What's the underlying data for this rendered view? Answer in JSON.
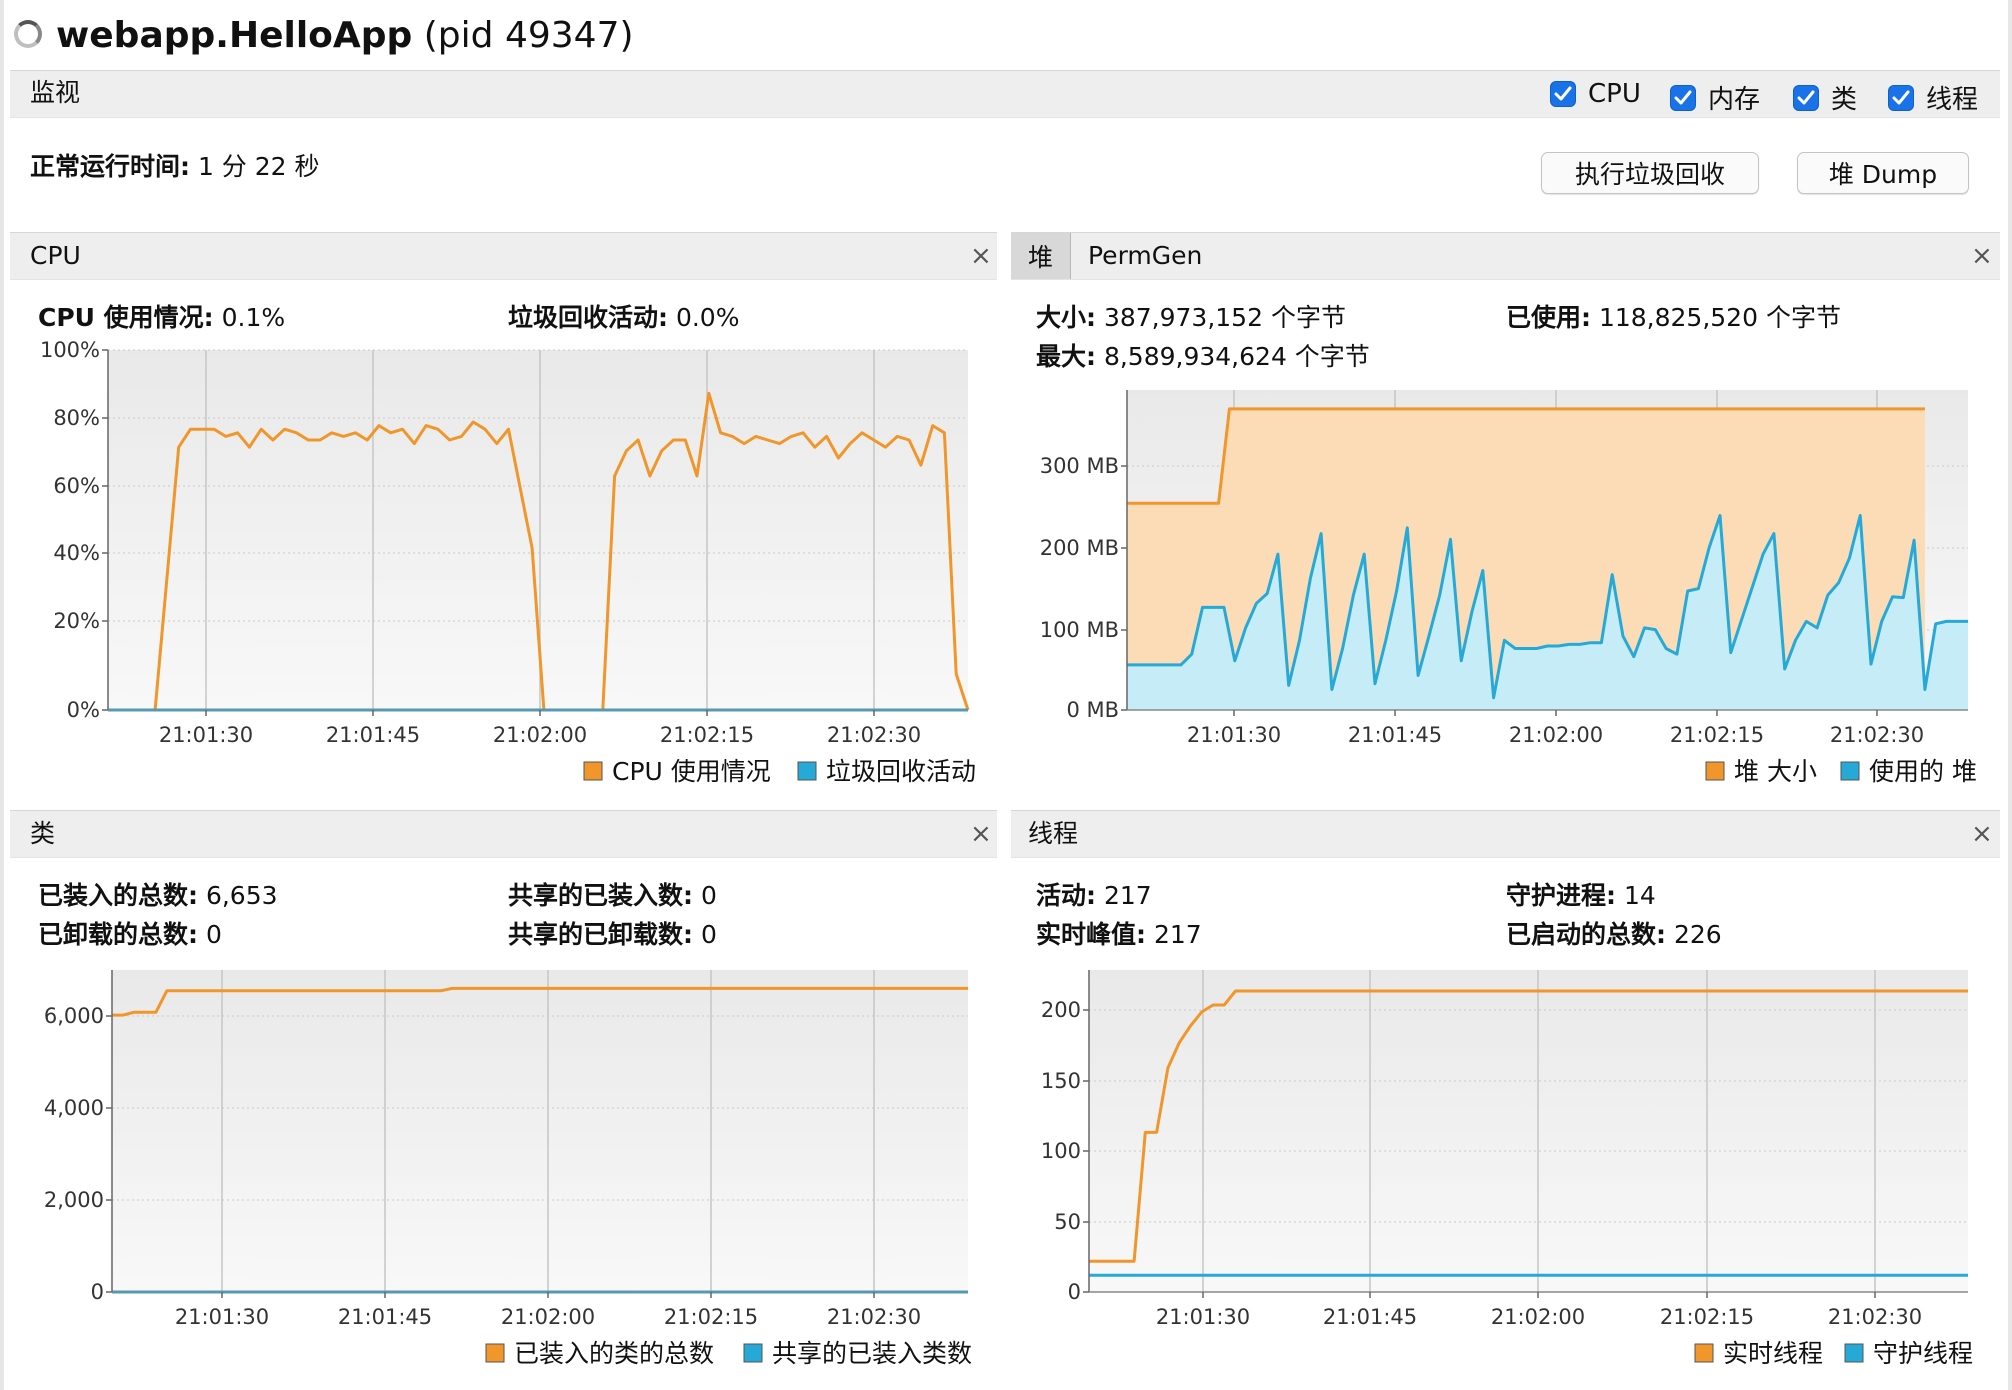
{
  "window": {
    "app_name": "webapp.HelloApp",
    "pid_text": "(pid 49347)"
  },
  "monitor": {
    "title": "监视",
    "checkboxes": [
      {
        "label": "CPU",
        "checked": true
      },
      {
        "label": "内存",
        "checked": true
      },
      {
        "label": "类",
        "checked": true
      },
      {
        "label": "线程",
        "checked": true
      }
    ],
    "uptime_label": "正常运行时间:",
    "uptime_value": "1 分 22 秒",
    "gc_button": "执行垃圾回收",
    "dump_button": "堆 Dump"
  },
  "colors": {
    "orange": "#f0962a",
    "blue": "#27a9d8"
  },
  "cpu_panel": {
    "title": "CPU",
    "close": "×",
    "stats": [
      {
        "label": "CPU 使用情况:",
        "value": "0.1%"
      },
      {
        "label": "垃圾回收活动:",
        "value": "0.0%"
      }
    ],
    "chart_data": {
      "type": "line",
      "y_ticks": [
        "100%",
        "80%",
        "60%",
        "40%",
        "20%",
        "0%"
      ],
      "x_ticks": [
        "21:01:30",
        "21:01:45",
        "21:02:00",
        "21:02:15",
        "21:02:30"
      ],
      "ylim": [
        0,
        100
      ],
      "series": [
        {
          "name": "CPU 使用情况",
          "color": "#f0962a",
          "points": [
            [
              0,
              0
            ],
            [
              4,
              0
            ],
            [
              6,
              73
            ],
            [
              7,
              78
            ],
            [
              8,
              78
            ],
            [
              9,
              78
            ],
            [
              10,
              76
            ],
            [
              11,
              77
            ],
            [
              12,
              73
            ],
            [
              13,
              78
            ],
            [
              14,
              75
            ],
            [
              15,
              78
            ],
            [
              16,
              77
            ],
            [
              17,
              75
            ],
            [
              18,
              75
            ],
            [
              19,
              77
            ],
            [
              20,
              76
            ],
            [
              21,
              77
            ],
            [
              22,
              75
            ],
            [
              23,
              79
            ],
            [
              24,
              77
            ],
            [
              25,
              78
            ],
            [
              26,
              74
            ],
            [
              27,
              79
            ],
            [
              28,
              78
            ],
            [
              29,
              75
            ],
            [
              30,
              76
            ],
            [
              31,
              80
            ],
            [
              32,
              78
            ],
            [
              33,
              74
            ],
            [
              34,
              78
            ],
            [
              36,
              45
            ],
            [
              37,
              0
            ],
            [
              42,
              0
            ],
            [
              43,
              65
            ],
            [
              44,
              72
            ],
            [
              45,
              75
            ],
            [
              46,
              65
            ],
            [
              47,
              72
            ],
            [
              48,
              75
            ],
            [
              49,
              75
            ],
            [
              50,
              65
            ],
            [
              51,
              88
            ],
            [
              52,
              77
            ],
            [
              53,
              76
            ],
            [
              54,
              74
            ],
            [
              55,
              76
            ],
            [
              56,
              75
            ],
            [
              57,
              74
            ],
            [
              58,
              76
            ],
            [
              59,
              77
            ],
            [
              60,
              73
            ],
            [
              61,
              76
            ],
            [
              62,
              70
            ],
            [
              63,
              74
            ],
            [
              64,
              77
            ],
            [
              65,
              75
            ],
            [
              66,
              73
            ],
            [
              67,
              76
            ],
            [
              68,
              75
            ],
            [
              69,
              68
            ],
            [
              70,
              79
            ],
            [
              71,
              77
            ],
            [
              72,
              10
            ],
            [
              73,
              0
            ]
          ]
        },
        {
          "name": "垃圾回收活动",
          "color": "#27a9d8",
          "points": [
            [
              0,
              0
            ],
            [
              73,
              0
            ]
          ]
        }
      ],
      "legend": [
        "CPU 使用情况",
        "垃圾回收活动"
      ]
    }
  },
  "heap_panel": {
    "tabs": [
      "堆",
      "PermGen"
    ],
    "close": "×",
    "stats": [
      {
        "label": "大小:",
        "value": "387,973,152 个字节"
      },
      {
        "label": "已使用:",
        "value": "118,825,520 个字节"
      },
      {
        "label": "最大:",
        "value": "8,589,934,624 个字节"
      }
    ],
    "chart_data": {
      "type": "area",
      "y_ticks": [
        "300 MB",
        "200 MB",
        "100 MB",
        "0 MB"
      ],
      "x_ticks": [
        "21:01:30",
        "21:01:45",
        "21:02:00",
        "21:02:15",
        "21:02:30"
      ],
      "ylim": [
        0,
        390
      ],
      "series": [
        {
          "name": "堆 大小",
          "color": "#f0962a",
          "points": [
            [
              0,
              252
            ],
            [
              8.5,
              252
            ],
            [
              9.5,
              367
            ],
            [
              74,
              367
            ]
          ]
        },
        {
          "name": "使用的 堆",
          "color": "#27a9d8",
          "points": [
            [
              0,
              55
            ],
            [
              5,
              55
            ],
            [
              6,
              68
            ],
            [
              7,
              125
            ],
            [
              9,
              125
            ],
            [
              10,
              60
            ],
            [
              11,
              100
            ],
            [
              12,
              130
            ],
            [
              13,
              142
            ],
            [
              14,
              190
            ],
            [
              15,
              30
            ],
            [
              16,
              85
            ],
            [
              17,
              160
            ],
            [
              18,
              215
            ],
            [
              19,
              25
            ],
            [
              20,
              75
            ],
            [
              21,
              140
            ],
            [
              22,
              190
            ],
            [
              23,
              32
            ],
            [
              24,
              85
            ],
            [
              25,
              145
            ],
            [
              26,
              222
            ],
            [
              27,
              42
            ],
            [
              28,
              90
            ],
            [
              29,
              140
            ],
            [
              30,
              208
            ],
            [
              31,
              60
            ],
            [
              32,
              120
            ],
            [
              33,
              170
            ],
            [
              34,
              15
            ],
            [
              35,
              85
            ],
            [
              36,
              75
            ],
            [
              37,
              75
            ],
            [
              38,
              75
            ],
            [
              39,
              78
            ],
            [
              40,
              78
            ],
            [
              41,
              80
            ],
            [
              42,
              80
            ],
            [
              43,
              82
            ],
            [
              44,
              82
            ],
            [
              45,
              165
            ],
            [
              46,
              90
            ],
            [
              47,
              65
            ],
            [
              48,
              100
            ],
            [
              49,
              98
            ],
            [
              50,
              75
            ],
            [
              51,
              68
            ],
            [
              52,
              145
            ],
            [
              53,
              148
            ],
            [
              54,
              198
            ],
            [
              55,
              237
            ],
            [
              56,
              70
            ],
            [
              57,
              110
            ],
            [
              58,
              150
            ],
            [
              59,
              190
            ],
            [
              60,
              215
            ],
            [
              61,
              50
            ],
            [
              62,
              85
            ],
            [
              63,
              108
            ],
            [
              64,
              100
            ],
            [
              65,
              140
            ],
            [
              66,
              155
            ],
            [
              67,
              185
            ],
            [
              68,
              237
            ],
            [
              69,
              56
            ],
            [
              70,
              108
            ],
            [
              71,
              138
            ],
            [
              72,
              137
            ],
            [
              73,
              207
            ],
            [
              74,
              25
            ],
            [
              75,
              105
            ],
            [
              76,
              108
            ],
            [
              78,
              108
            ]
          ]
        }
      ],
      "legend": [
        "堆 大小",
        "使用的 堆"
      ]
    }
  },
  "classes_panel": {
    "title": "类",
    "close": "×",
    "stats": [
      {
        "label": "已装入的总数:",
        "value": "6,653"
      },
      {
        "label": "共享的已装入数:",
        "value": "0"
      },
      {
        "label": "已卸载的总数:",
        "value": "0"
      },
      {
        "label": "共享的已卸载数:",
        "value": "0"
      }
    ],
    "chart_data": {
      "type": "line",
      "y_ticks": [
        "6,000",
        "4,000",
        "2,000",
        "0"
      ],
      "x_ticks": [
        "21:01:30",
        "21:01:45",
        "21:02:00",
        "21:02:15",
        "21:02:30"
      ],
      "ylim": [
        0,
        7000
      ],
      "series": [
        {
          "name": "已装入的类的总数",
          "color": "#f0962a",
          "points": [
            [
              0,
              6020
            ],
            [
              1,
              6020
            ],
            [
              2,
              6080
            ],
            [
              4,
              6080
            ],
            [
              5,
              6550
            ],
            [
              30,
              6550
            ],
            [
              31,
              6600
            ],
            [
              78,
              6600
            ]
          ]
        },
        {
          "name": "共享的已装入类数",
          "color": "#27a9d8",
          "points": [
            [
              0,
              0
            ],
            [
              78,
              0
            ]
          ]
        }
      ],
      "legend": [
        "已装入的类的总数",
        "共享的已装入类数"
      ]
    }
  },
  "threads_panel": {
    "title": "线程",
    "close": "×",
    "stats": [
      {
        "label": "活动:",
        "value": "217"
      },
      {
        "label": "守护进程:",
        "value": "14"
      },
      {
        "label": "实时峰值:",
        "value": "217"
      },
      {
        "label": "已启动的总数:",
        "value": "226"
      }
    ],
    "chart_data": {
      "type": "line",
      "y_ticks": [
        "200",
        "150",
        "100",
        "50",
        "0"
      ],
      "x_ticks": [
        "21:01:30",
        "21:01:45",
        "21:02:00",
        "21:02:15",
        "21:02:30"
      ],
      "ylim": [
        0,
        230
      ],
      "series": [
        {
          "name": "实时线程",
          "color": "#f0962a",
          "points": [
            [
              0,
              22
            ],
            [
              4,
              22
            ],
            [
              5,
              114
            ],
            [
              6,
              114
            ],
            [
              7,
              160
            ],
            [
              8,
              178
            ],
            [
              9,
              190
            ],
            [
              10,
              200
            ],
            [
              11,
              205
            ],
            [
              12,
              205
            ],
            [
              13,
              215
            ],
            [
              78,
              215
            ]
          ]
        },
        {
          "name": "守护线程",
          "color": "#27a9d8",
          "points": [
            [
              0,
              12
            ],
            [
              78,
              12
            ]
          ]
        }
      ],
      "legend": [
        "实时线程",
        "守护线程"
      ]
    }
  }
}
